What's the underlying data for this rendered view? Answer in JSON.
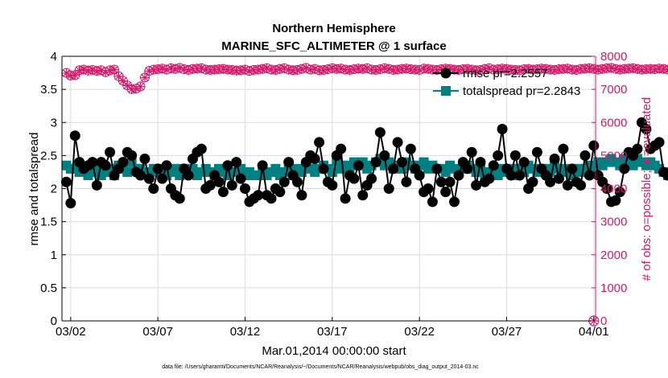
{
  "chart_data": {
    "type": "line",
    "title": "Northern Hemisphere",
    "subtitle": "MARINE_SFC_ALTIMETER @ 1 surface",
    "xlabel": "Mar.01,2014 00:00:00 start",
    "ylabel": "rmse and totalspread",
    "y2label": "# of obs: o=possible; ∗=evaluated",
    "footnote": "data file: /Users/gharamti/Documents/NCAR/Reanalysis/~/Documents/NCAR/Reanalysis/webpub/obs_diag_output_2014-03.nc",
    "x_unit": "days since Mar.01,2014",
    "xlim": [
      0.5,
      31.1
    ],
    "ylim": [
      0,
      4
    ],
    "y2lim": [
      0,
      8000
    ],
    "xtick_values": [
      1,
      6,
      11,
      16,
      21,
      26,
      31
    ],
    "xtick_labels": [
      "03/02",
      "03/07",
      "03/12",
      "03/17",
      "03/22",
      "03/27",
      "04/01"
    ],
    "ytick_labels": [
      "0",
      "0.5",
      "1",
      "1.5",
      "2",
      "2.5",
      "3",
      "3.5",
      "4"
    ],
    "y2tick_labels": [
      "0",
      "1000",
      "2000",
      "3000",
      "4000",
      "5000",
      "6000",
      "7000",
      "8000"
    ],
    "grid": true,
    "legend_position": "top-right",
    "series": [
      {
        "name": "rmse pr=2.2557",
        "color": "#000000",
        "marker": "filled-circle",
        "axis": "left",
        "x_start": 0.75,
        "x_step": 0.25,
        "values": [
          2.1,
          1.78,
          2.8,
          2.4,
          2.3,
          2.35,
          2.4,
          2.05,
          2.4,
          2.35,
          2.55,
          2.2,
          2.3,
          2.4,
          2.55,
          2.5,
          2.25,
          2.2,
          2.45,
          2.15,
          2.0,
          2.3,
          2.15,
          2.35,
          2.0,
          1.9,
          1.85,
          2.3,
          2.2,
          2.45,
          2.55,
          2.6,
          2.0,
          2.05,
          2.2,
          2.1,
          1.95,
          2.35,
          2.05,
          2.4,
          2.15,
          2.0,
          1.8,
          1.85,
          1.9,
          2.35,
          1.9,
          1.85,
          2.0,
          1.95,
          2.1,
          2.4,
          2.2,
          2.1,
          1.9,
          2.4,
          2.5,
          2.45,
          2.7,
          2.3,
          2.1,
          2.05,
          2.5,
          2.6,
          1.85,
          2.2,
          2.15,
          2.35,
          1.9,
          2.05,
          2.15,
          2.4,
          2.85,
          2.5,
          2.0,
          2.3,
          2.7,
          2.4,
          2.1,
          2.6,
          2.3,
          2.2,
          1.95,
          2.0,
          1.8,
          2.3,
          2.1,
          1.95,
          2.1,
          1.8,
          2.2,
          2.4,
          2.3,
          2.55,
          2.05,
          2.4,
          2.1,
          2.15,
          2.35,
          2.5,
          2.9,
          2.3,
          2.2,
          2.5,
          2.2,
          2.4,
          2.0,
          2.1,
          2.55,
          2.3,
          2.2,
          2.1,
          2.45,
          2.15,
          2.6,
          2.05,
          2.3,
          2.1,
          2.05,
          2.5,
          2.2,
          2.65,
          2.2,
          2.1,
          2.0,
          1.8,
          1.82,
          1.95,
          2.3,
          2.55,
          2.5,
          2.6,
          3.0,
          2.9,
          2.6,
          2.65,
          2.7,
          2.25,
          2.2
        ]
      },
      {
        "name": "totalspread pr=2.2843",
        "color": "#008080",
        "marker": "filled-square",
        "axis": "left",
        "x_start": 0.75,
        "x_step": 0.25,
        "values": [
          2.35,
          2.3,
          2.3,
          2.25,
          2.3,
          2.2,
          2.25,
          2.3,
          2.2,
          2.25,
          2.3,
          2.2,
          2.35,
          2.3,
          2.25,
          2.4,
          2.3,
          2.3,
          2.25,
          2.2,
          2.3,
          2.25,
          2.3,
          2.2,
          2.25,
          2.3,
          2.2,
          2.3,
          2.25,
          2.3,
          2.2,
          2.25,
          2.3,
          2.25,
          2.2,
          2.3,
          2.25,
          2.2,
          2.25,
          2.25,
          2.3,
          2.2,
          2.25,
          2.2,
          2.2,
          2.25,
          2.2,
          2.25,
          2.3,
          2.2,
          2.25,
          2.3,
          2.2,
          2.3,
          2.25,
          2.35,
          2.3,
          2.25,
          2.3,
          2.35,
          2.3,
          2.25,
          2.4,
          2.3,
          2.35,
          2.3,
          2.4,
          2.35,
          2.4,
          2.3,
          2.35,
          2.4,
          2.45,
          2.35,
          2.4,
          2.3,
          2.35,
          2.3,
          2.4,
          2.35,
          2.3,
          2.35,
          2.4,
          2.3,
          2.35,
          2.3,
          2.3,
          2.25,
          2.35,
          2.3,
          2.25,
          2.3,
          2.35,
          2.3,
          2.25,
          2.3,
          2.2,
          2.25,
          2.3,
          2.2,
          2.3,
          2.25,
          2.3,
          2.2,
          2.3,
          2.25,
          2.35,
          2.3,
          2.25,
          2.3,
          2.3,
          2.25,
          2.35,
          2.3,
          2.25,
          2.3,
          2.2,
          2.3,
          2.25,
          2.3,
          2.35,
          2.3,
          2.4,
          2.35,
          2.4,
          2.45,
          2.4,
          2.35,
          2.45,
          2.4,
          2.35,
          2.45,
          2.4,
          2.35,
          2.4,
          2.35,
          2.3,
          2.25,
          2.2
        ]
      },
      {
        "name": "possible",
        "color": "#d6186b",
        "marker": "open-circle",
        "axis": "right",
        "x_start": 0.75,
        "x_step": 0.25,
        "values": [
          7500,
          7420,
          7430,
          7580,
          7600,
          7570,
          7590,
          7560,
          7580,
          7520,
          7580,
          7600,
          7400,
          7260,
          7120,
          7010,
          7020,
          7090,
          7360,
          7560,
          7600,
          7610,
          7630,
          7600,
          7640,
          7620,
          7650,
          7610,
          7590,
          7620,
          7630,
          7640,
          7600,
          7590,
          7600,
          7610,
          7620,
          7600,
          7590,
          7570,
          7580,
          7600,
          7560,
          7590,
          7600,
          7620,
          7640,
          7600,
          7590,
          7620,
          7640,
          7600,
          7580,
          7590,
          7620,
          7650,
          7600,
          7620,
          7580,
          7590,
          7610,
          7640,
          7620,
          7630,
          7600,
          7590,
          7610,
          7630,
          7620,
          7640,
          7600,
          7590,
          7610,
          7640,
          7620,
          7590,
          7600,
          7620,
          7630,
          7610,
          7600,
          7590,
          7630,
          7620,
          7600,
          7590,
          7610,
          7630,
          7620,
          7600,
          7590,
          7610,
          7620,
          7600,
          7580,
          7590,
          7620,
          7640,
          7600,
          7610,
          7630,
          7620,
          7600,
          7590,
          7580,
          7610,
          7620,
          7600,
          7610,
          7630,
          7620,
          7600,
          7590,
          7610,
          7620,
          7630,
          7600,
          7590,
          7620,
          7630,
          7640,
          7620,
          7600,
          7620,
          7640,
          7650,
          7620,
          7600,
          7620,
          7630,
          7640,
          7620,
          7600,
          7610,
          7620,
          7610,
          7630,
          7620,
          7600
        ]
      },
      {
        "name": "evaluated",
        "color": "#d6186b",
        "marker": "asterisk",
        "axis": "right",
        "x_start": 0.75,
        "x_step": 0.25,
        "values": [
          7490,
          7410,
          7425,
          7575,
          7595,
          7565,
          7585,
          7555,
          7575,
          7515,
          7575,
          7595,
          7395,
          7255,
          7115,
          7005,
          7015,
          7085,
          7355,
          7555,
          7595,
          7605,
          7625,
          7595,
          7635,
          7615,
          7645,
          7605,
          7585,
          7615,
          7625,
          7635,
          7595,
          7585,
          7595,
          7605,
          7615,
          7595,
          7585,
          7565,
          7575,
          7595,
          7555,
          7585,
          7595,
          7615,
          7635,
          7595,
          7585,
          7615,
          7635,
          7595,
          7575,
          7585,
          7615,
          7645,
          7595,
          7615,
          7575,
          7585,
          7605,
          7635,
          7615,
          7625,
          7595,
          7585,
          7605,
          7625,
          7615,
          7635,
          7595,
          7585,
          7605,
          7635,
          7615,
          7585,
          7595,
          7615,
          7625,
          7605,
          7595,
          7585,
          7625,
          7615,
          7595,
          7585,
          7605,
          7625,
          7615,
          7595,
          7585,
          7605,
          7615,
          7595,
          7575,
          7585,
          7615,
          7635,
          7595,
          7605,
          7625,
          7615,
          7595,
          7585,
          7575,
          7605,
          7615,
          7595,
          7605,
          7625,
          7615,
          7595,
          7585,
          7605,
          7615,
          7625,
          7595,
          7585,
          7615,
          7625,
          7635,
          7615,
          7595,
          7615,
          7635,
          7645,
          7615,
          7595,
          7615,
          7625,
          7635,
          7615,
          7595,
          7605,
          7615,
          7605,
          7625,
          7615,
          7595
        ]
      }
    ],
    "extra_markers": [
      {
        "x": 31.0,
        "y2": 0,
        "marker": "open-circle+asterisk",
        "color": "#d6186b"
      }
    ]
  }
}
